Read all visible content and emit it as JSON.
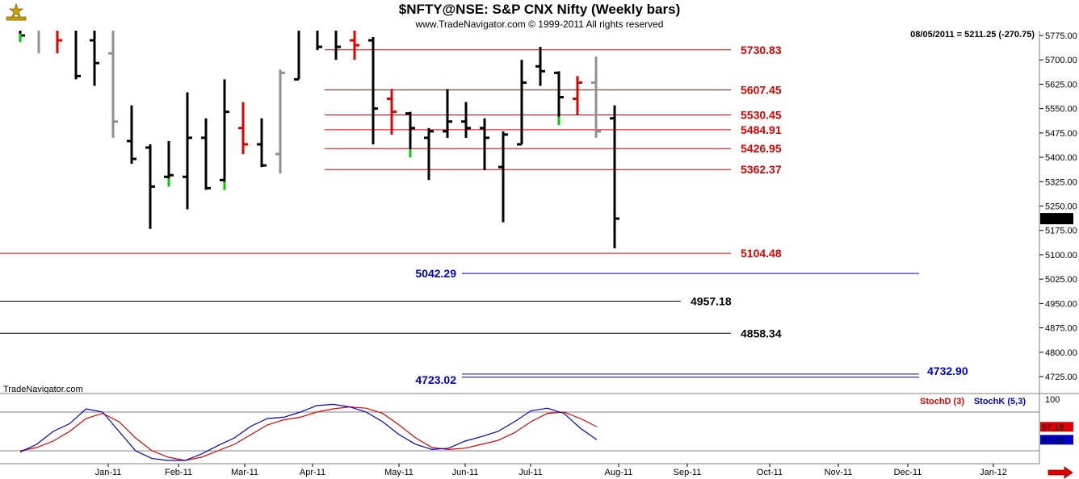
{
  "header": {
    "title": "$NFTY@NSE:  S&P CNX Nifty  (Weekly bars)",
    "copyright": "www.TradeNavigator.com © 1999-2011 All rights reserved",
    "last_info": "08/05/2011 = 5211.25 (-270.75)",
    "watermark": "TradeNavigator.com"
  },
  "chart_data": [
    {
      "type": "ohlc",
      "price_ylim": [
        4680,
        5830
      ],
      "y_ticks": [
        "5775.00",
        "5700.00",
        "5625.00",
        "5550.00",
        "5475.00",
        "5400.00",
        "5325.00",
        "5250.00",
        "5175.00",
        "5100.00",
        "5025.00",
        "4950.00",
        "4875.00",
        "4800.00",
        "4725.00"
      ],
      "last_price_label": "5211.25",
      "x_labels": [
        "Jan-11",
        "Feb-11",
        "Mar-11",
        "Apr-11",
        "May-11",
        "Jun-11",
        "Jul-11",
        "Aug-11",
        "Sep-11",
        "Oct-11",
        "Nov-11",
        "Dec-11",
        "Jan-12"
      ],
      "bars": [
        {
          "h": 5820,
          "l": 5755,
          "o": 5790,
          "c": 5775,
          "color": "black",
          "tick": "green"
        },
        {
          "h": 5830,
          "l": 5720,
          "o": 5800,
          "c": 5810,
          "color": "gray"
        },
        {
          "h": 5830,
          "l": 5720,
          "o": 5800,
          "c": 5760,
          "color": "red"
        },
        {
          "h": 5830,
          "l": 5640,
          "o": 5820,
          "c": 5650,
          "color": "black"
        },
        {
          "h": 5830,
          "l": 5620,
          "o": 5760,
          "c": 5690,
          "color": "black"
        },
        {
          "h": 5830,
          "l": 5460,
          "o": 5720,
          "c": 5510,
          "color": "gray"
        },
        {
          "h": 5560,
          "l": 5380,
          "o": 5450,
          "c": 5395,
          "color": "black"
        },
        {
          "h": 5440,
          "l": 5180,
          "o": 5430,
          "c": 5310,
          "color": "black"
        },
        {
          "h": 5450,
          "l": 5310,
          "o": 5340,
          "c": 5345,
          "color": "black",
          "tick": "green"
        },
        {
          "h": 5600,
          "l": 5240,
          "o": 5340,
          "c": 5460,
          "color": "black"
        },
        {
          "h": 5520,
          "l": 5300,
          "o": 5460,
          "c": 5305,
          "color": "black"
        },
        {
          "h": 5640,
          "l": 5300,
          "o": 5330,
          "c": 5540,
          "color": "black",
          "tick": "green"
        },
        {
          "h": 5570,
          "l": 5410,
          "o": 5490,
          "c": 5440,
          "color": "red"
        },
        {
          "h": 5520,
          "l": 5370,
          "o": 5440,
          "c": 5375,
          "color": "black"
        },
        {
          "h": 5670,
          "l": 5350,
          "o": 5410,
          "c": 5660,
          "color": "gray"
        },
        {
          "h": 5830,
          "l": 5640,
          "o": 5640,
          "c": 5820,
          "color": "black"
        },
        {
          "h": 5830,
          "l": 5730,
          "o": 5820,
          "c": 5740,
          "color": "black"
        },
        {
          "h": 5830,
          "l": 5700,
          "o": 5790,
          "c": 5740,
          "color": "black"
        },
        {
          "h": 5830,
          "l": 5700,
          "o": 5760,
          "c": 5745,
          "color": "red"
        },
        {
          "h": 5770,
          "l": 5440,
          "o": 5760,
          "c": 5550,
          "color": "black"
        },
        {
          "h": 5610,
          "l": 5470,
          "o": 5580,
          "c": 5540,
          "color": "red"
        },
        {
          "h": 5540,
          "l": 5400,
          "o": 5535,
          "c": 5490,
          "color": "black",
          "tick": "green"
        },
        {
          "h": 5490,
          "l": 5330,
          "o": 5460,
          "c": 5480,
          "color": "black"
        },
        {
          "h": 5610,
          "l": 5460,
          "o": 5480,
          "c": 5510,
          "color": "black"
        },
        {
          "h": 5570,
          "l": 5460,
          "o": 5510,
          "c": 5490,
          "color": "black"
        },
        {
          "h": 5520,
          "l": 5360,
          "o": 5490,
          "c": 5460,
          "color": "black"
        },
        {
          "h": 5480,
          "l": 5200,
          "o": 5370,
          "c": 5470,
          "color": "black"
        },
        {
          "h": 5700,
          "l": 5440,
          "o": 5440,
          "c": 5630,
          "color": "black"
        },
        {
          "h": 5740,
          "l": 5620,
          "o": 5680,
          "c": 5665,
          "color": "black"
        },
        {
          "h": 5665,
          "l": 5500,
          "o": 5660,
          "c": 5585,
          "color": "black",
          "tick": "green"
        },
        {
          "h": 5650,
          "l": 5530,
          "o": 5580,
          "c": 5630,
          "color": "red"
        },
        {
          "h": 5710,
          "l": 5460,
          "o": 5630,
          "c": 5480,
          "color": "gray"
        },
        {
          "h": 5560,
          "l": 5120,
          "o": 5520,
          "c": 5211.25,
          "color": "black"
        }
      ],
      "levels": [
        {
          "value": 5730.83,
          "label": "5730.83",
          "color": "#e00000"
        },
        {
          "value": 5607.45,
          "label": "5607.45",
          "color": "#e00000"
        },
        {
          "value": 5530.45,
          "label": "5530.45",
          "color": "#e00000"
        },
        {
          "value": 5484.91,
          "label": "5484.91",
          "color": "#e00000"
        },
        {
          "value": 5426.95,
          "label": "5426.95",
          "color": "#e00000"
        },
        {
          "value": 5362.37,
          "label": "5362.37",
          "color": "#e00000"
        },
        {
          "value": 5104.48,
          "label": "5104.48",
          "color": "#e00000"
        },
        {
          "value": 5042.29,
          "label": "5042.29",
          "color": "#0000cc"
        },
        {
          "value": 4957.18,
          "label": "4957.18",
          "color": "#000000"
        },
        {
          "value": 4858.34,
          "label": "4858.34",
          "color": "#000000"
        },
        {
          "value": 4723.02,
          "label": "4723.02",
          "color": "#0000cc"
        },
        {
          "value": 4732.9,
          "label": "4732.90",
          "color": "#0000cc"
        }
      ]
    },
    {
      "type": "line",
      "ylim": [
        0,
        100
      ],
      "y_ticks": [
        "100"
      ],
      "bands": [
        80,
        20
      ],
      "series": [
        {
          "name": "StochD (3)",
          "color": "#e00000",
          "last_label": "57.18",
          "values": [
            20,
            25,
            35,
            50,
            70,
            78,
            65,
            40,
            20,
            10,
            5,
            10,
            20,
            30,
            45,
            60,
            68,
            72,
            80,
            85,
            88,
            86,
            78,
            60,
            40,
            25,
            22,
            24,
            30,
            36,
            48,
            65,
            78,
            80,
            70,
            57.18
          ]
        },
        {
          "name": "StochK (5,3)",
          "color": "#0000cc",
          "last_label": "37.08",
          "values": [
            18,
            30,
            50,
            62,
            85,
            80,
            50,
            20,
            8,
            5,
            5,
            15,
            28,
            40,
            58,
            70,
            72,
            80,
            90,
            92,
            88,
            80,
            65,
            45,
            30,
            22,
            24,
            35,
            42,
            50,
            65,
            82,
            86,
            78,
            55,
            37.08
          ]
        }
      ]
    }
  ]
}
